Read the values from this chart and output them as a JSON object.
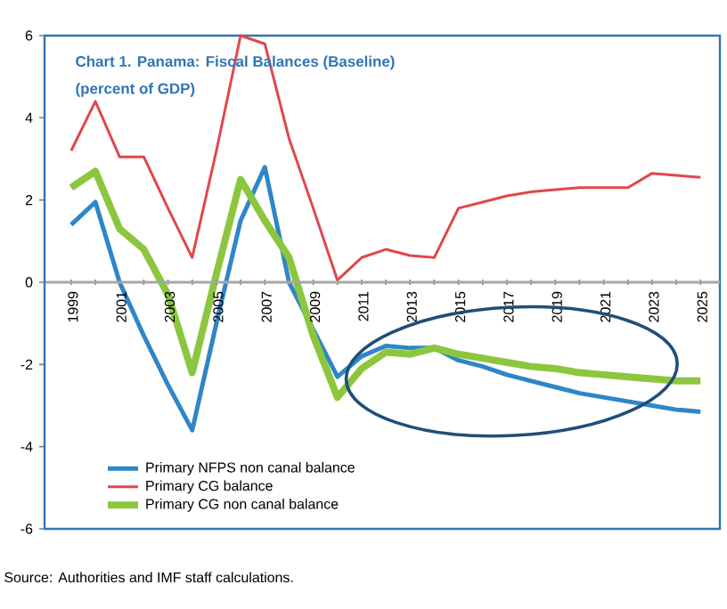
{
  "chart_data": {
    "type": "line",
    "title": "Chart 1. Panama: Fiscal Balances (Baseline)",
    "subtitle": "(percent of GDP)",
    "categories": [
      "1999",
      null,
      "2001",
      null,
      "2003",
      null,
      "2005",
      null,
      "2007",
      null,
      "2009",
      null,
      "2011",
      null,
      "2013",
      null,
      "2015",
      null,
      "2017",
      null,
      "2019",
      null,
      "2021",
      null,
      "2023",
      null,
      "2025"
    ],
    "series": [
      {
        "name": "Primary NFPS non canal balance",
        "color": "#2e86c8",
        "values": [
          1.4,
          1.95,
          0.0,
          -1.3,
          -2.5,
          -3.6,
          -1.0,
          1.5,
          2.8,
          0.0,
          null,
          -2.3,
          -1.8,
          -1.55,
          -1.6,
          -1.6,
          -1.9,
          -2.05,
          -2.25,
          -2.4,
          -2.55,
          -2.7,
          -2.8,
          -2.9,
          -3.0,
          -3.1,
          -3.15
        ]
      },
      {
        "name": "Primary CG balance",
        "color": "#e0474c",
        "values": [
          3.2,
          4.4,
          3.05,
          3.05,
          1.8,
          0.6,
          3.2,
          6.0,
          5.8,
          3.5,
          1.8,
          0.05,
          0.6,
          0.8,
          0.65,
          0.6,
          1.8,
          1.95,
          2.1,
          2.2,
          2.25,
          2.3,
          2.3,
          2.3,
          2.65,
          2.6,
          2.55
        ]
      },
      {
        "name": "Primary CG non canal balance",
        "color": "#8cc63f",
        "values": [
          2.3,
          2.7,
          1.3,
          0.8,
          -0.3,
          -2.2,
          0.2,
          2.5,
          1.5,
          0.6,
          -1.3,
          -2.8,
          -2.1,
          -1.7,
          -1.75,
          -1.6,
          -1.75,
          -1.85,
          -1.95,
          -2.05,
          -2.1,
          -2.2,
          -2.25,
          -2.3,
          -2.35,
          -2.4,
          -2.4
        ]
      }
    ],
    "ylim": [
      -6,
      6
    ],
    "yticks": [
      -6,
      -4,
      -2,
      0,
      2,
      4,
      6
    ],
    "legend": "bottom left",
    "annotations": [
      "Source: Authorities and IMF staff calculations."
    ]
  }
}
